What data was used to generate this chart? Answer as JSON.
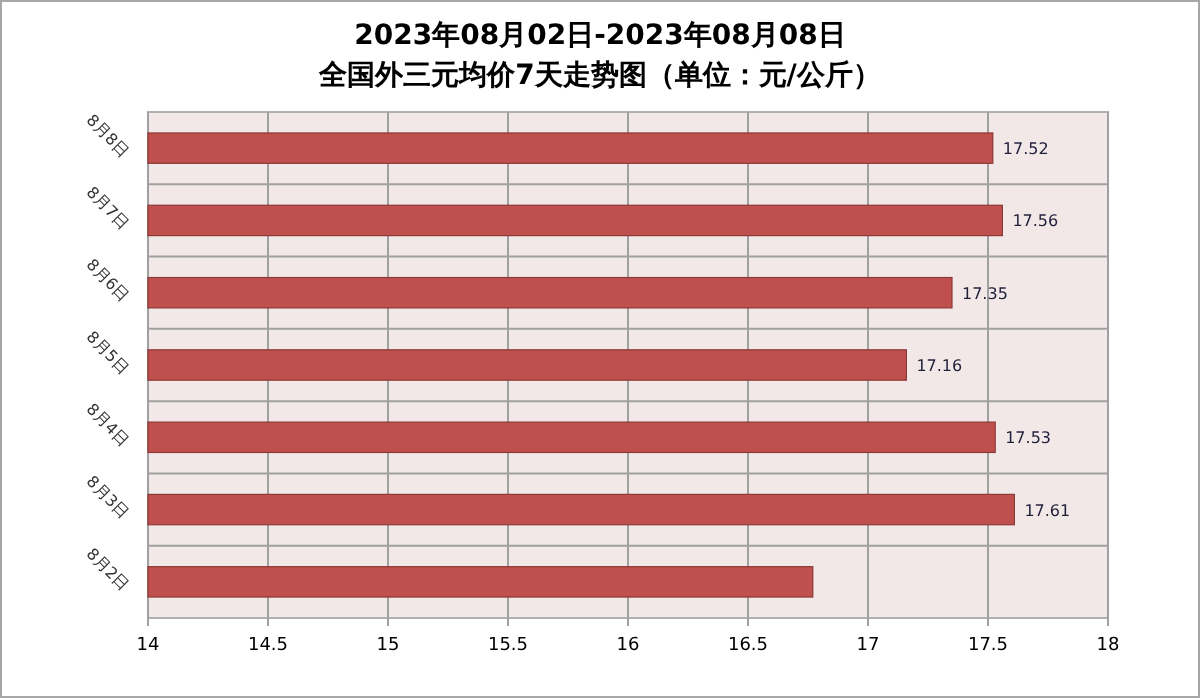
{
  "chart_data": {
    "type": "bar",
    "orientation": "horizontal",
    "title": "2023年08月02日-2023年08月08日",
    "subtitle": "全国外三元均价7天走势图（单位：元/公斤）",
    "categories": [
      "8月8日",
      "8月7日",
      "8月6日",
      "8月5日",
      "8月4日",
      "8月3日",
      "8月2日"
    ],
    "values": [
      17.52,
      17.56,
      17.35,
      17.16,
      17.53,
      17.61,
      16.77
    ],
    "value_labels": [
      "17.52",
      "17.56",
      "17.35",
      "17.16",
      "17.53",
      "17.61",
      null
    ],
    "color": "#c0504d",
    "xlim": [
      14,
      18
    ],
    "xticks": [
      14,
      14.5,
      15,
      15.5,
      16,
      16.5,
      17,
      17.5,
      18
    ],
    "grid": true
  }
}
